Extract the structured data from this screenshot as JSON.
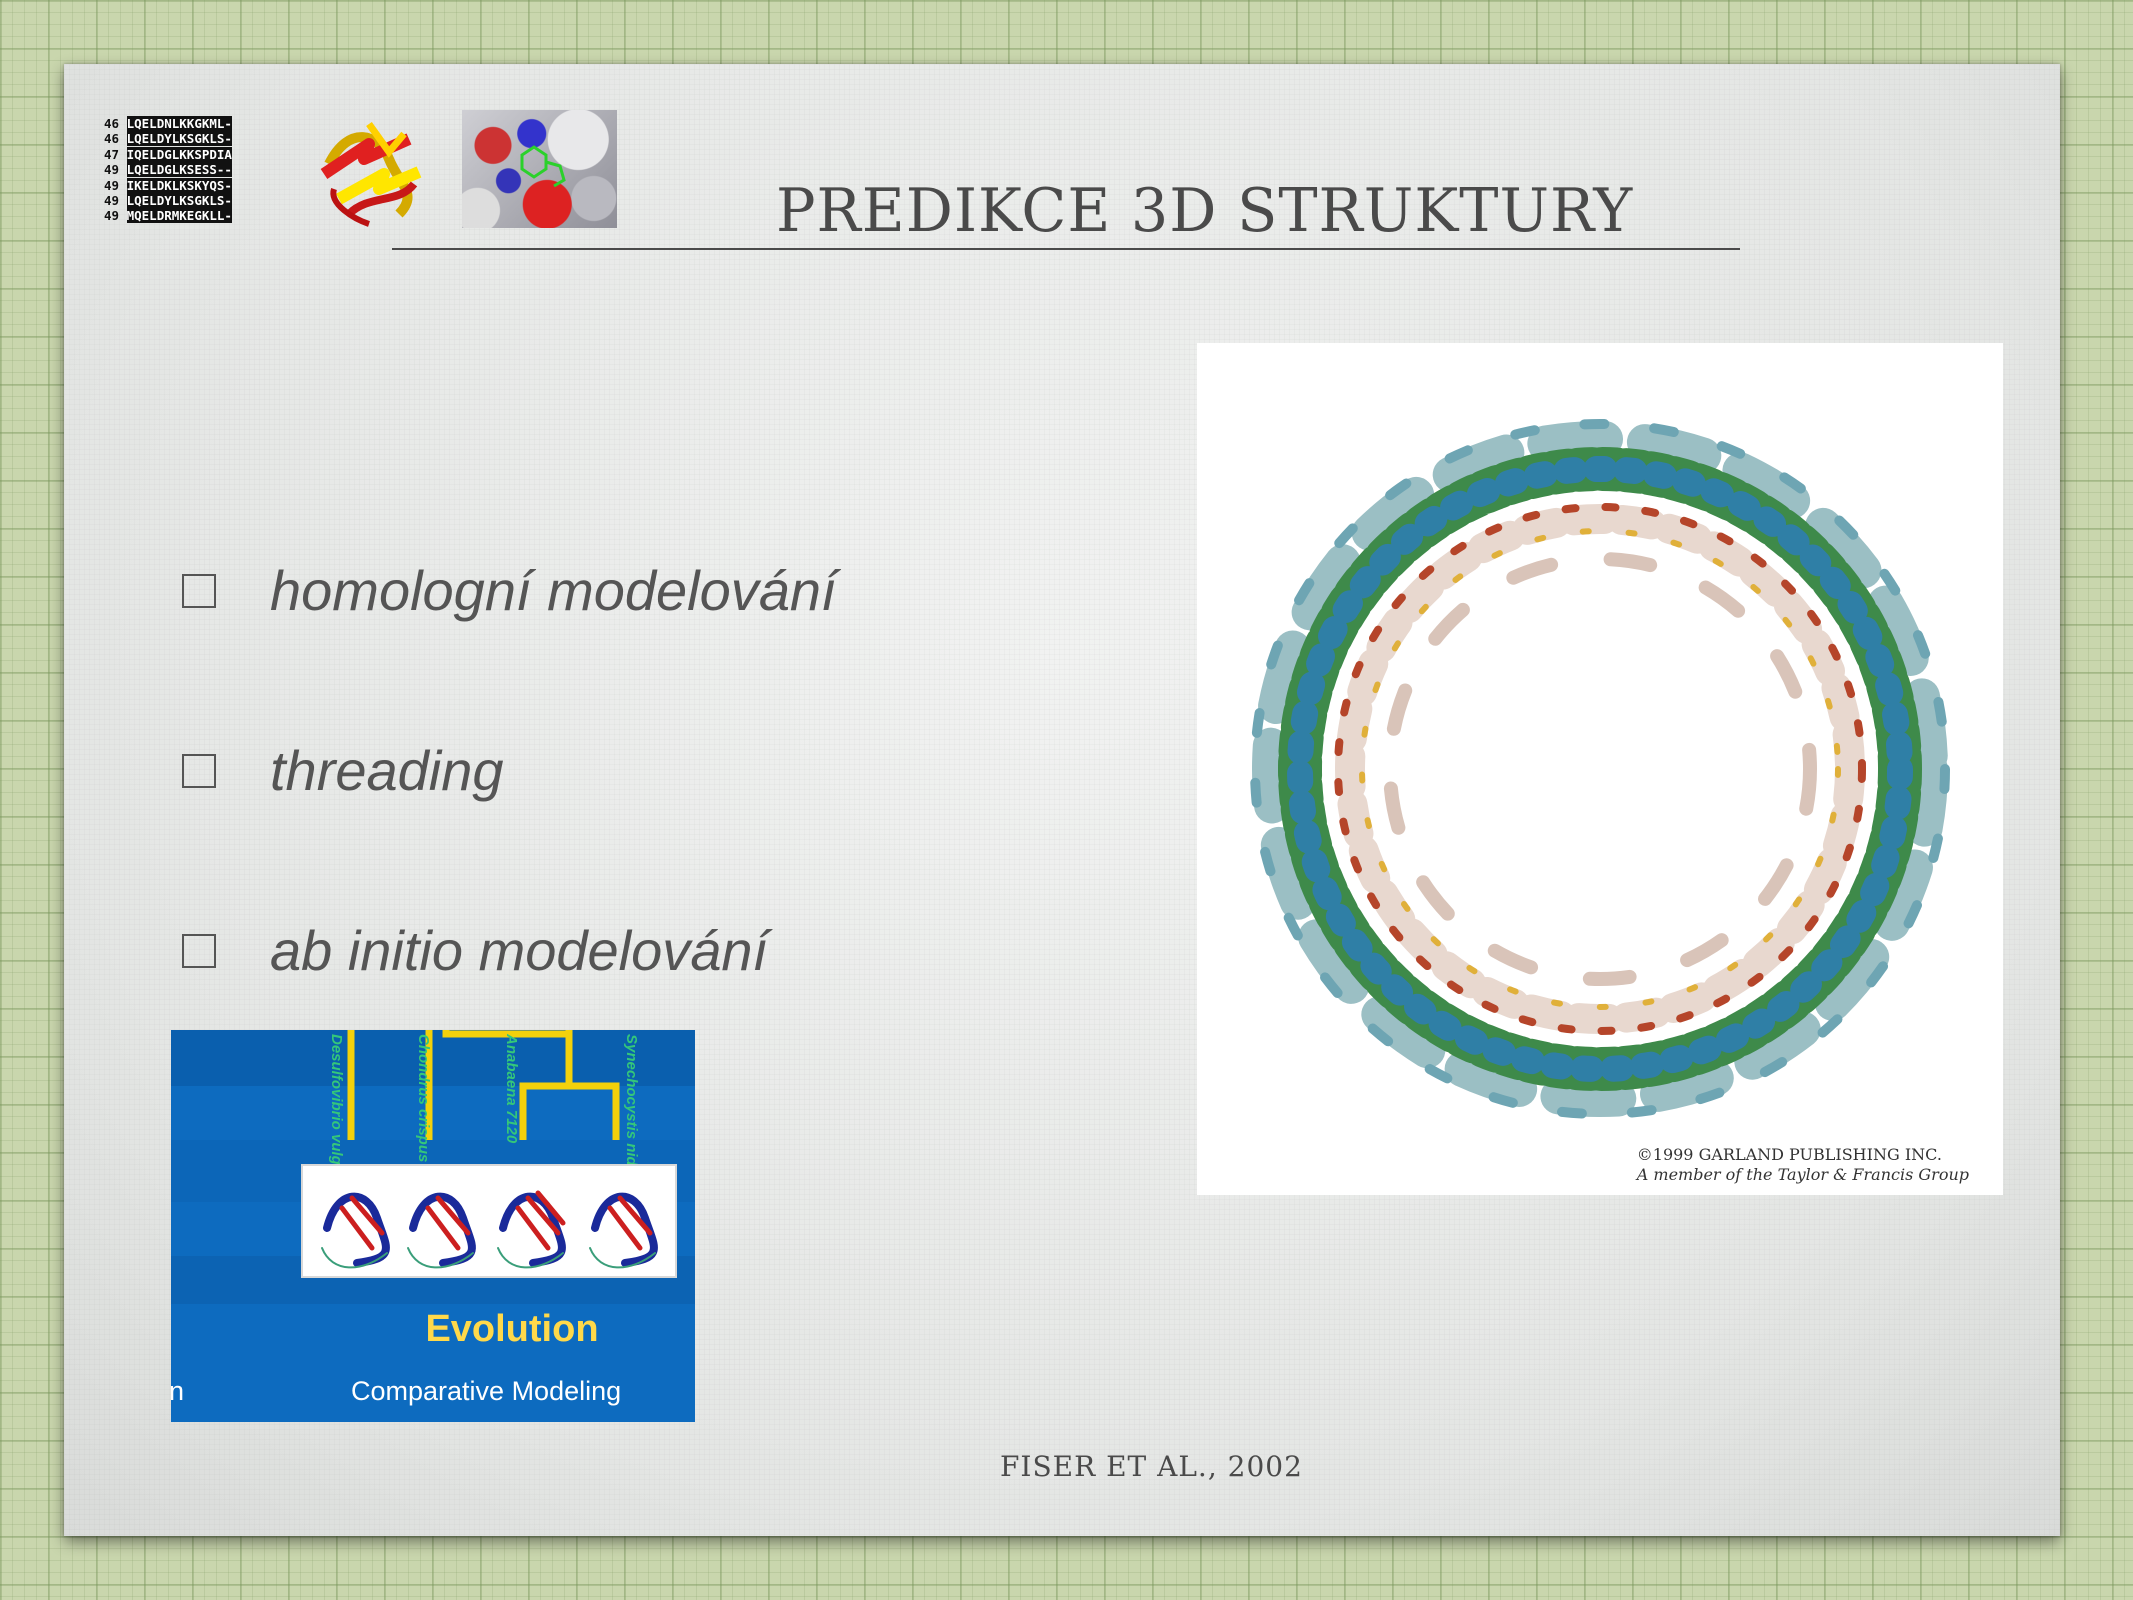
{
  "slide": {
    "title": "PREDIKCE 3D STRUKTURY",
    "bullets": [
      {
        "text": "homologní modelování"
      },
      {
        "text": "threading"
      },
      {
        "text": "ab initio modelování"
      }
    ],
    "citation": "FISER ET AL., 2002"
  },
  "alignment_thumbnail": {
    "rows": [
      {
        "num": "46",
        "seq": "LQELDNLKKGKML-"
      },
      {
        "num": "46",
        "seq": "LQELDYLKSGKLS-"
      },
      {
        "num": "47",
        "seq": "IQELDGLKKSPDIA"
      },
      {
        "num": "49",
        "seq": "LQELDGLKSESS--"
      },
      {
        "num": "49",
        "seq": "IKELDKLKSKYQS-"
      },
      {
        "num": "49",
        "seq": "LQELDYLKSGKLS-"
      },
      {
        "num": "49",
        "seq": "MQELDRMKEGKLL-"
      }
    ]
  },
  "evolution_figure": {
    "heading": "Evolution",
    "subheading": "Comparative Modeling",
    "edge_text": "n",
    "species": [
      "Desulfovibrio vulgaris",
      "Chondrus crispus",
      "Anabaena 7120",
      "Synechocystis nidulans"
    ]
  },
  "ring_figure": {
    "copyright_line1": "©1999 GARLAND PUBLISHING INC.",
    "copyright_line2": "A member of the Taylor & Francis Group"
  },
  "colors": {
    "background_grid": "#c9d6ad",
    "slide": "#e6e8e6",
    "text": "#555555",
    "evolution_blue": "#0d6bbf",
    "evolution_yellow": "#ffd94a"
  }
}
